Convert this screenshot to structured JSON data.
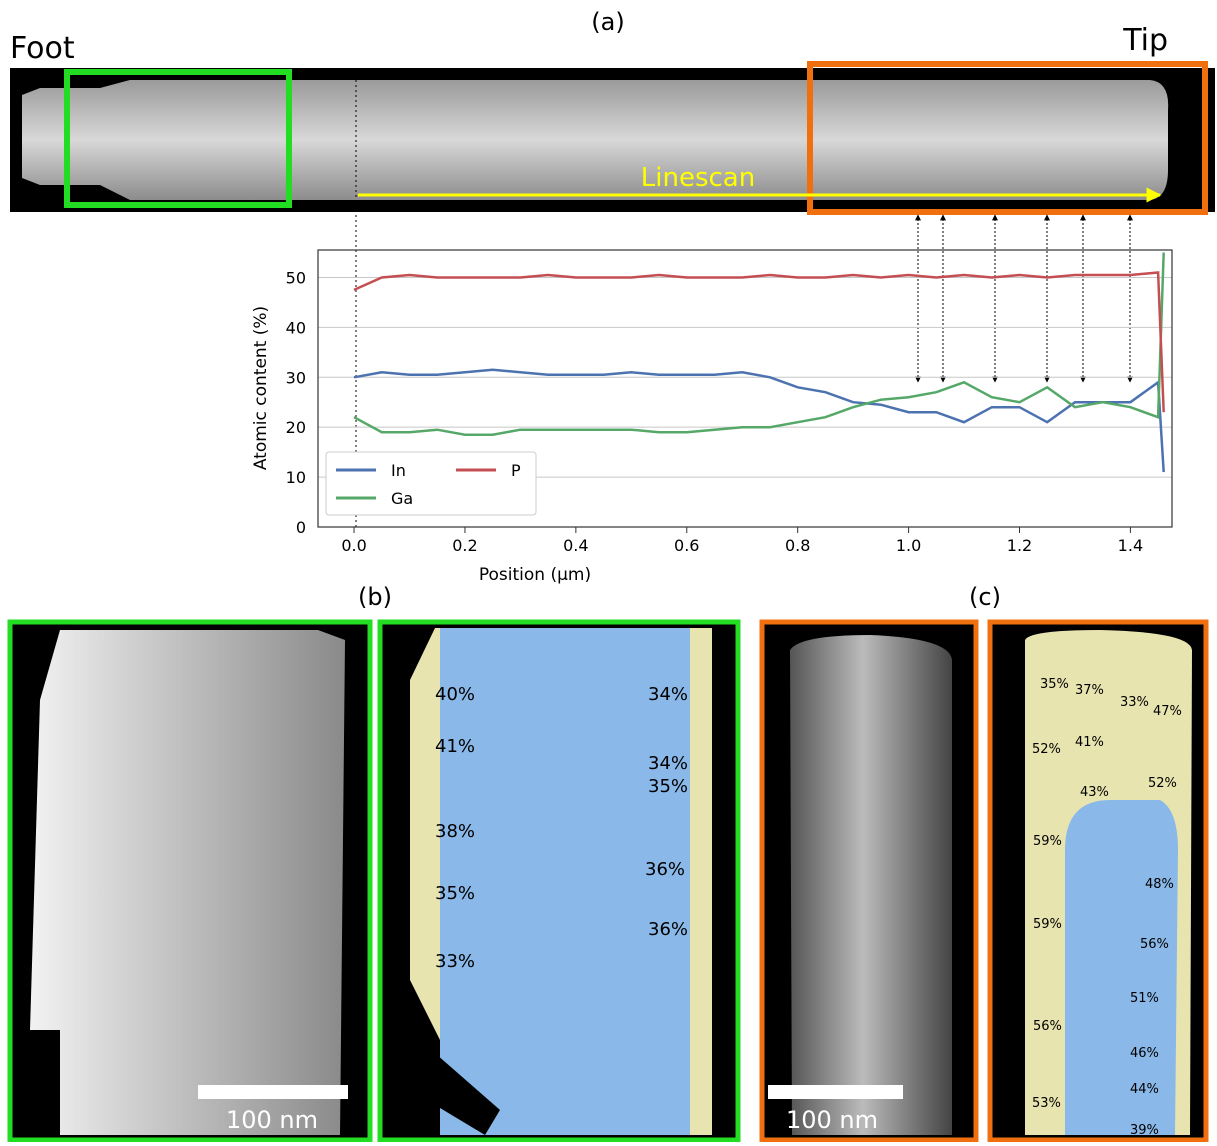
{
  "chart_data": {
    "type": "line",
    "title": "(a)",
    "xlabel": "Position (μm)",
    "ylabel": "Atomic content (%)",
    "x": [
      0,
      0.05,
      0.1,
      0.15,
      0.2,
      0.25,
      0.3,
      0.35,
      0.4,
      0.45,
      0.5,
      0.55,
      0.6,
      0.65,
      0.7,
      0.75,
      0.8,
      0.85,
      0.9,
      0.95,
      1.0,
      1.05,
      1.1,
      1.15,
      1.2,
      1.25,
      1.3,
      1.35,
      1.4,
      1.45,
      1.46
    ],
    "series": [
      {
        "name": "In",
        "color": "#4c72b0",
        "values": [
          30,
          31,
          30.5,
          30.5,
          31,
          31.5,
          31,
          30.5,
          30.5,
          30.5,
          31,
          30.5,
          30.5,
          30.5,
          31,
          30,
          28,
          27,
          25,
          24.5,
          23,
          23,
          21,
          24,
          24,
          21,
          25,
          25,
          25,
          29,
          11
        ]
      },
      {
        "name": "Ga",
        "color": "#55a868",
        "values": [
          22,
          19,
          19,
          19.5,
          18.5,
          18.5,
          19.5,
          19.5,
          19.5,
          19.5,
          19.5,
          19,
          19,
          19.5,
          20,
          20,
          21,
          22,
          24,
          25.5,
          26,
          27,
          29,
          26,
          25,
          28,
          24,
          25,
          24,
          22,
          55
        ]
      },
      {
        "name": "P",
        "color": "#c44e52",
        "values": [
          47.5,
          50,
          50.5,
          50,
          50,
          50,
          50,
          50.5,
          50,
          50,
          50,
          50.5,
          50,
          50,
          50,
          50.5,
          50,
          50,
          50.5,
          50,
          50.5,
          50,
          50.5,
          50,
          50.5,
          50,
          50.5,
          50.5,
          50.5,
          51,
          23
        ]
      }
    ],
    "xlim": [
      -0.065,
      1.475
    ],
    "ylim": [
      0,
      55.5
    ],
    "xticks": [
      {
        "value": 0,
        "label": "0.0"
      },
      0.2,
      0.4,
      0.6,
      0.8,
      {
        "value": 1,
        "label": "1.0"
      },
      1.2,
      1.4
    ],
    "yticks": [
      0,
      10,
      20,
      30,
      40,
      50
    ],
    "grid": "y",
    "legend": "lower left"
  },
  "image_labels": {
    "foot": "Foot",
    "tip": "Tip",
    "linescan": "Linescan",
    "panel_b": "(b)",
    "panel_c": "(c)",
    "scale_b": "100 nm",
    "scale_c": "100 nm"
  },
  "panel_b_percentages": [
    "40%",
    "41%",
    "38%",
    "35%",
    "33%",
    "34%",
    "34%",
    "35%",
    "36%",
    "36%"
  ],
  "panel_c_percentages": [
    "35%",
    "37%",
    "33%",
    "47%",
    "52%",
    "41%",
    "43%",
    "52%",
    "59%",
    "48%",
    "59%",
    "56%",
    "51%",
    "56%",
    "46%",
    "44%",
    "53%",
    "39%"
  ]
}
